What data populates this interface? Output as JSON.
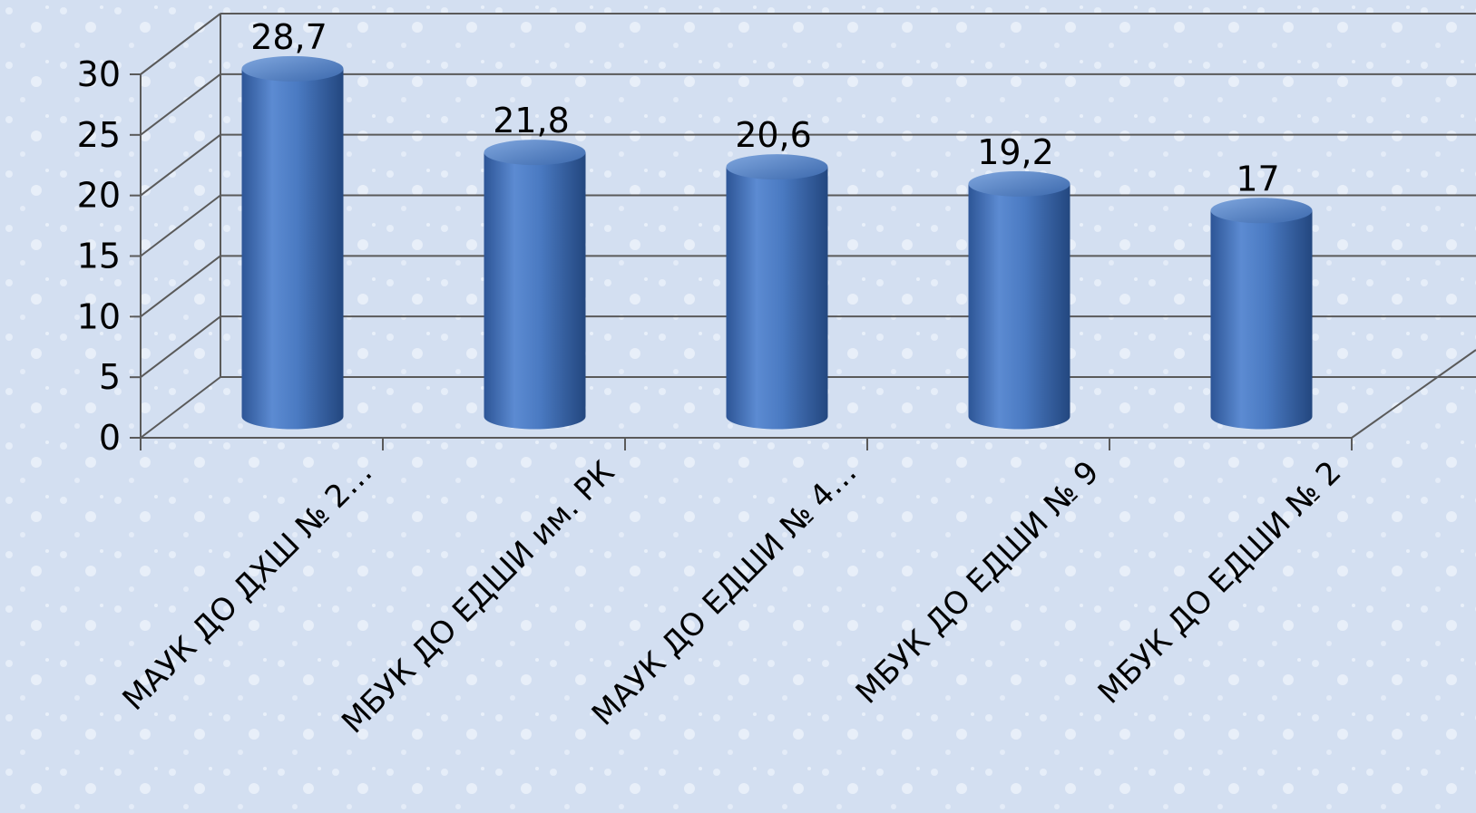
{
  "chart_data": {
    "type": "bar",
    "style": "3d-cylinder",
    "categories": [
      "МАУК ДО ДХШ № 2…",
      "МБУК ДО ЕДШИ им. РК",
      "МАУК ДО ЕДШИ № 4…",
      "МБУК ДО ЕДШИ № 9",
      "МБУК ДО ЕДШИ № 2"
    ],
    "values": [
      28.7,
      21.8,
      20.6,
      19.2,
      17
    ],
    "value_labels": [
      "28,7",
      "21,8",
      "20,6",
      "19,2",
      "17"
    ],
    "yticks": [
      0,
      5,
      10,
      15,
      20,
      25,
      30
    ],
    "ylim": [
      0,
      30
    ],
    "grid": true,
    "title": "",
    "xlabel": "",
    "ylabel": "",
    "colors": {
      "bar": "#4a7ac2",
      "bar_dark": "#2a5090",
      "bar_light": "#7fa6de",
      "grid": "#5a5a5a",
      "background": "#d5e1f2"
    }
  }
}
